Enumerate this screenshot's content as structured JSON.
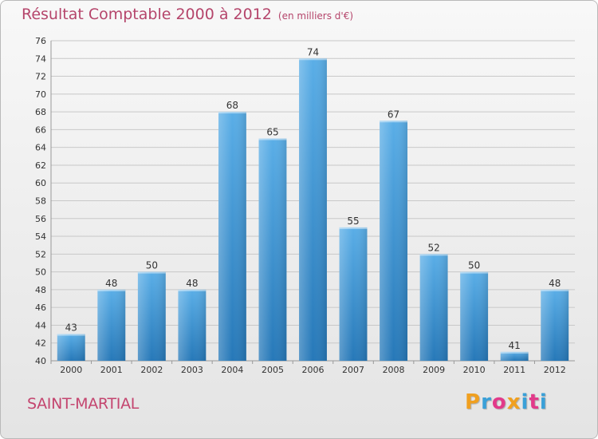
{
  "title": "Résultat Comptable 2000 à 2012",
  "subtitle": "(en milliers d'€)",
  "place": "SAINT-MARTIAL",
  "logo": {
    "letters": [
      "P",
      "r",
      "o",
      "x",
      "i",
      "t",
      "i"
    ],
    "colors": [
      "#f0a020",
      "#3aa0d8",
      "#e23a8a",
      "#f0a020",
      "#3aa0d8",
      "#e23a8a",
      "#3aa0d8"
    ]
  },
  "colors": {
    "bar": "#3d8fd3",
    "bar_light": "#5aaee7",
    "bar_dark": "#2678b8",
    "grid": "#c8c8c8",
    "title": "#b5456b"
  },
  "chart_data": {
    "type": "bar",
    "title": "Résultat Comptable 2000 à 2012",
    "subtitle": "(en milliers d'€)",
    "categories": [
      "2000",
      "2001",
      "2002",
      "2003",
      "2004",
      "2005",
      "2006",
      "2007",
      "2008",
      "2009",
      "2010",
      "2011",
      "2012"
    ],
    "values": [
      43,
      48,
      50,
      48,
      68,
      65,
      74,
      55,
      67,
      52,
      50,
      41,
      48
    ],
    "ylim": [
      40,
      76
    ],
    "ytick_step": 2,
    "xlabel": "",
    "ylabel": "",
    "grid": true
  }
}
